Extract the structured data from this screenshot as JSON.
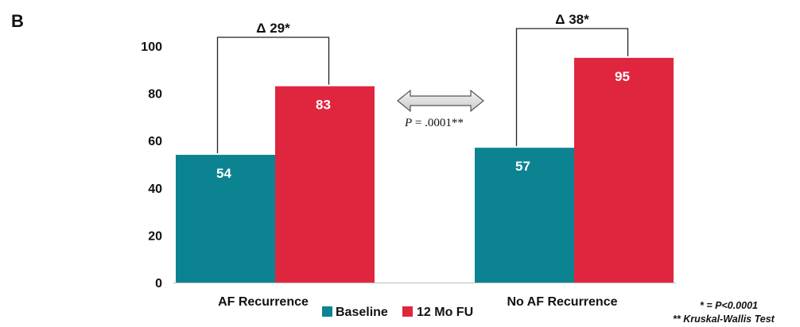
{
  "panel_label": "B",
  "chart_data": {
    "type": "bar",
    "categories": [
      "AF Recurrence",
      "No AF Recurrence"
    ],
    "series": [
      {
        "name": "Baseline",
        "values": [
          54,
          57
        ]
      },
      {
        "name": "12 Mo FU",
        "values": [
          83,
          95
        ]
      }
    ],
    "ylim": [
      0,
      100
    ],
    "yticks": [
      0,
      20,
      40,
      60,
      80,
      100
    ],
    "grid": false,
    "legend_position": "bottom-center",
    "colors": {
      "Baseline": "#0b8391",
      "12 Mo FU": "#e0263f"
    },
    "value_labels": [
      [
        "54",
        "83"
      ],
      [
        "57",
        "95"
      ]
    ],
    "annotations": {
      "deltas": [
        "Δ 29*",
        "Δ 38*"
      ],
      "comparison": {
        "p_symbol": "P",
        "p_text": " = .0001**"
      }
    },
    "footnotes": [
      "* = P<0.0001",
      "** Kruskal-Wallis Test"
    ]
  }
}
